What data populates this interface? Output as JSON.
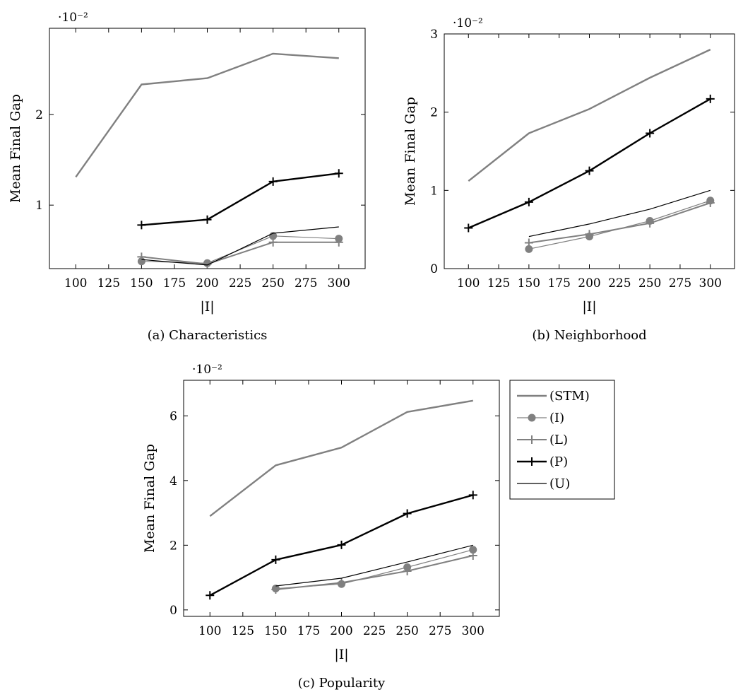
{
  "chart_data": [
    {
      "type": "line",
      "caption": "(a) Characteristics",
      "xlabel": "|I|",
      "ylabel": "Mean Final Gap",
      "y_exponent_label": "·10⁻²",
      "xlim": [
        80,
        320
      ],
      "ylim": [
        0.3,
        2.95
      ],
      "xticks": [
        100,
        125,
        150,
        175,
        200,
        225,
        250,
        275,
        300
      ],
      "yticks": [
        1,
        2
      ],
      "series": [
        {
          "name": "(STM)",
          "x": [
            100,
            150,
            200,
            250,
            300
          ],
          "y": [
            1.31,
            2.33,
            2.4,
            2.67,
            2.62
          ]
        },
        {
          "name": "(I)",
          "x": [
            150,
            200,
            250,
            300
          ],
          "y": [
            0.38,
            0.36,
            0.66,
            0.63
          ]
        },
        {
          "name": "(L)",
          "x": [
            150,
            200,
            250,
            300
          ],
          "y": [
            0.43,
            0.35,
            0.59,
            0.59
          ]
        },
        {
          "name": "(P)",
          "x": [
            150,
            200,
            250,
            300
          ],
          "y": [
            0.78,
            0.84,
            1.26,
            1.35
          ]
        },
        {
          "name": "(U)",
          "x": [
            150,
            200,
            250,
            300
          ],
          "y": [
            0.4,
            0.34,
            0.69,
            0.76
          ]
        }
      ]
    },
    {
      "type": "line",
      "caption": "(b) Neighborhood",
      "xlabel": "|I|",
      "ylabel": "Mean Final Gap",
      "y_exponent_label": "·10⁻²",
      "xlim": [
        80,
        320
      ],
      "ylim": [
        0,
        3
      ],
      "xticks": [
        100,
        125,
        150,
        175,
        200,
        225,
        250,
        275,
        300
      ],
      "yticks": [
        0,
        1,
        2,
        3
      ],
      "series": [
        {
          "name": "(STM)",
          "x": [
            100,
            150,
            200,
            250,
            300
          ],
          "y": [
            1.12,
            1.73,
            2.04,
            2.44,
            2.8
          ]
        },
        {
          "name": "(I)",
          "x": [
            150,
            200,
            250,
            300
          ],
          "y": [
            0.25,
            0.41,
            0.61,
            0.87
          ]
        },
        {
          "name": "(L)",
          "x": [
            150,
            200,
            250,
            300
          ],
          "y": [
            0.33,
            0.44,
            0.58,
            0.84
          ]
        },
        {
          "name": "(P)",
          "x": [
            100,
            150,
            200,
            250,
            300
          ],
          "y": [
            0.52,
            0.85,
            1.25,
            1.73,
            2.17
          ]
        },
        {
          "name": "(U)",
          "x": [
            150,
            200,
            250,
            300
          ],
          "y": [
            0.41,
            0.57,
            0.76,
            1.0
          ]
        }
      ]
    },
    {
      "type": "line",
      "caption": "(c) Popularity",
      "xlabel": "|I|",
      "ylabel": "Mean Final Gap",
      "y_exponent_label": "·10⁻²",
      "xlim": [
        80,
        320
      ],
      "ylim": [
        -0.2,
        7.1
      ],
      "xticks": [
        100,
        125,
        150,
        175,
        200,
        225,
        250,
        275,
        300
      ],
      "yticks": [
        0,
        2,
        4,
        6
      ],
      "series": [
        {
          "name": "(STM)",
          "x": [
            100,
            150,
            200,
            250,
            300
          ],
          "y": [
            2.9,
            4.47,
            5.02,
            6.12,
            6.47
          ]
        },
        {
          "name": "(I)",
          "x": [
            150,
            200,
            250,
            300
          ],
          "y": [
            0.66,
            0.8,
            1.32,
            1.86
          ]
        },
        {
          "name": "(L)",
          "x": [
            150,
            200,
            250,
            300
          ],
          "y": [
            0.63,
            0.84,
            1.2,
            1.68
          ]
        },
        {
          "name": "(P)",
          "x": [
            100,
            150,
            200,
            250,
            300
          ],
          "y": [
            0.45,
            1.55,
            2.01,
            2.98,
            3.55
          ]
        },
        {
          "name": "(U)",
          "x": [
            150,
            200,
            250,
            300
          ],
          "y": [
            0.74,
            0.98,
            1.48,
            2.0
          ]
        }
      ]
    }
  ],
  "legend": {
    "placement": "right of (c)",
    "entries": [
      {
        "label": "(STM)",
        "color": "#808080",
        "marker": "none"
      },
      {
        "label": "(I)",
        "color": "#808080",
        "marker": "circle"
      },
      {
        "label": "(L)",
        "color": "#808080",
        "marker": "plus"
      },
      {
        "label": "(P)",
        "color": "#000000",
        "marker": "plus"
      },
      {
        "label": "(U)",
        "color": "#000000",
        "marker": "none"
      }
    ]
  }
}
